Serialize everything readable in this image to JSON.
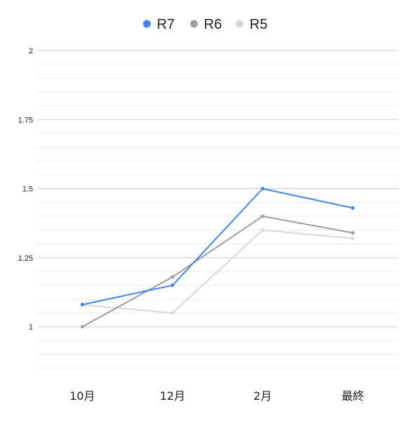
{
  "chart_data": {
    "type": "line",
    "categories": [
      "10月",
      "12月",
      "2月",
      "最終"
    ],
    "series": [
      {
        "name": "R7",
        "color": "#4285f4",
        "values": [
          1.08,
          1.15,
          1.5,
          1.43
        ]
      },
      {
        "name": "R6",
        "color": "#9e9e9e",
        "values": [
          1.0,
          1.18,
          1.4,
          1.34
        ]
      },
      {
        "name": "R5",
        "color": "#d9d9d9",
        "values": [
          1.08,
          1.05,
          1.35,
          1.32
        ]
      }
    ],
    "y_ticks": [
      "1",
      "1.25",
      "1.5",
      "1.75",
      "2"
    ],
    "ylim": [
      0.85,
      2.0
    ],
    "grid": true,
    "legend_position": "top-center"
  }
}
